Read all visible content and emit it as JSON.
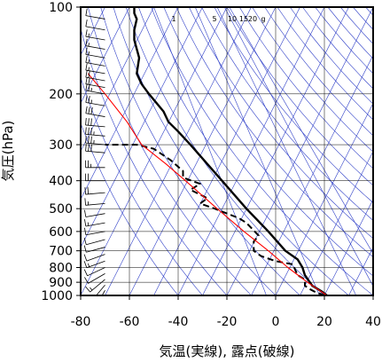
{
  "chart_data": {
    "type": "line",
    "title": "",
    "xlabel": "気温(実線), 露点(破線)",
    "ylabel": "気圧(hPa)",
    "xlim": [
      -80,
      40
    ],
    "ylim": [
      1000,
      100
    ],
    "y_scale": "log",
    "grid": true,
    "x_ticks": [
      -80,
      -60,
      -40,
      -20,
      0,
      20,
      40
    ],
    "x_tick_labels": [
      "-80",
      "-60",
      "-40",
      "-20",
      "0",
      "20",
      "40"
    ],
    "y_ticks": [
      100,
      200,
      300,
      400,
      500,
      600,
      700,
      800,
      900,
      1000
    ],
    "y_tick_labels": [
      "100",
      "200",
      "300",
      "400",
      "500",
      "600",
      "700",
      "800",
      "900",
      "1000"
    ],
    "mixing_ratio_labels": [
      "1",
      "5",
      "10",
      "15",
      "20",
      "g"
    ],
    "mixing_ratio_values": [
      1,
      5,
      10,
      15,
      20
    ],
    "colors": {
      "temperature": "#000000",
      "dewpoint": "#000000",
      "parcel": "#ff0000",
      "reference_lines": "#3040c8",
      "grid": "#000000",
      "wind": "#000000"
    },
    "series": [
      {
        "style": "solid",
        "x": [
          21,
          19,
          15,
          12,
          11,
          9,
          4,
          -3,
          -12,
          -22,
          -35,
          -40,
          -44,
          -46,
          -52,
          -55,
          -57,
          -56,
          -58,
          -58,
          -57,
          -58,
          -58
        ],
        "y": [
          1000,
          970,
          925,
          850,
          800,
          750,
          700,
          600,
          500,
          400,
          300,
          270,
          250,
          230,
          200,
          185,
          170,
          150,
          130,
          120,
          110,
          105,
          100
        ]
      },
      {
        "style": "dashed",
        "x": [
          20,
          16,
          14,
          12,
          12,
          9,
          7,
          0,
          -6,
          -9,
          -9,
          -7,
          -12,
          -15,
          -25,
          -31,
          -28,
          -35,
          -31,
          -38,
          -38,
          -43,
          -50,
          -57,
          -70
        ],
        "y": [
          1000,
          970,
          950,
          925,
          880,
          850,
          780,
          760,
          730,
          700,
          650,
          620,
          560,
          540,
          500,
          480,
          460,
          430,
          410,
          390,
          370,
          340,
          310,
          300,
          300
        ]
      },
      {
        "style": "solid",
        "x": [
          21,
          13,
          5,
          -3,
          -13,
          -24,
          -37,
          -45,
          -55,
          -61,
          -70,
          -77
        ],
        "y": [
          1000,
          900,
          800,
          700,
          600,
          500,
          400,
          350,
          300,
          250,
          200,
          170
        ]
      }
    ],
    "wind_barbs": {
      "x_position": -70,
      "pressures": [
        1000,
        960,
        920,
        880,
        840,
        800,
        760,
        720,
        680,
        640,
        600,
        560,
        520,
        480,
        440,
        400,
        360,
        320,
        300,
        280,
        260,
        240,
        220,
        200,
        190,
        180,
        170,
        160,
        150,
        140,
        130,
        120,
        110,
        100
      ],
      "direction_deg": [
        200,
        210,
        220,
        230,
        240,
        245,
        250,
        250,
        255,
        255,
        260,
        260,
        260,
        265,
        265,
        270,
        270,
        275,
        275,
        275,
        275,
        280,
        280,
        280,
        280,
        280,
        280,
        280,
        280,
        280,
        280,
        280,
        280,
        280
      ],
      "speed_kt": [
        10,
        10,
        10,
        15,
        10,
        10,
        15,
        10,
        10,
        10,
        10,
        15,
        10,
        15,
        20,
        20,
        25,
        30,
        35,
        35,
        30,
        30,
        25,
        25,
        20,
        20,
        15,
        15,
        15,
        15,
        15,
        10,
        10,
        10
      ]
    }
  }
}
